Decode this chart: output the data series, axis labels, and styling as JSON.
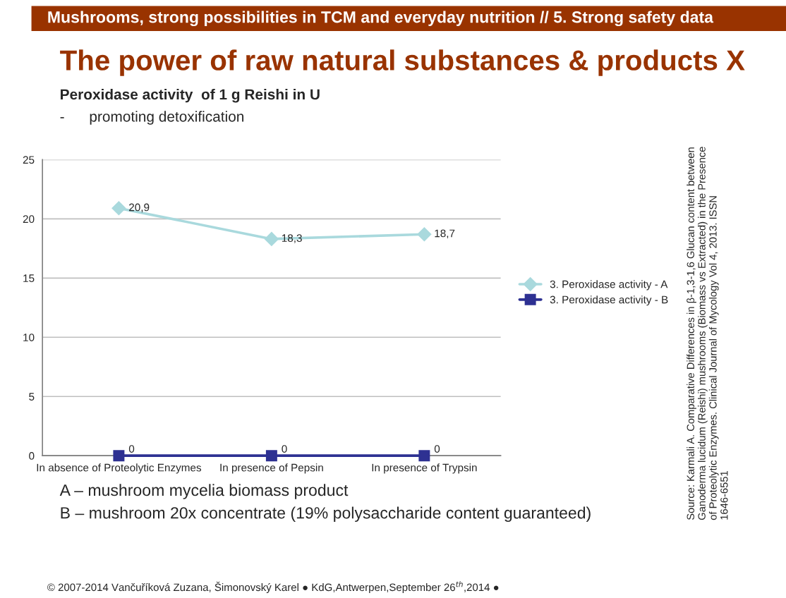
{
  "chart_data": {
    "type": "line",
    "title": "The power of raw natural substances & products X",
    "subtitle": "Peroxidase activity  of 1 g Reishi in U",
    "annotations": [
      "Mushrooms, strong possibilities in TCM and everyday nutrition // 5. Strong safety data",
      "-      promoting detoxification",
      "A – mushroom mycelia biomass product",
      "B – mushroom 20x concentrate (19% polysaccharide content guaranteed)",
      "Source: Karmali A. Comparative Differences in β-1,3-1,6 Glucan content between Ganoderma lucidum (Reishi) mushrooms (Biomass vs Extracted) in the Presence of Proteolytic Enzymes. Clinical Journal of Mycology Vol 4, 2013. ISSN 1646-6551",
      "© 2007-2014 Vančuříková Zuzana, Šimonovský Karel ● KdG,Antwerpen,September 26$^{th}$,2014 ●"
    ],
    "categories": [
      "In absence of Proteolytic Enzymes",
      "In presence of Pepsin",
      "In presence of Trypsin"
    ],
    "series": [
      {
        "name": "3. Peroxidase activity - A",
        "color": "#a9d9dd",
        "marker": "diamond",
        "values": [
          20.9,
          18.3,
          18.7
        ],
        "value_labels": [
          "20,9",
          "18,3",
          "18,7"
        ]
      },
      {
        "name": "3. Peroxidase activity - B",
        "color": "#2e3192",
        "marker": "square",
        "values": [
          0,
          0,
          0
        ],
        "value_labels": [
          "0",
          "0",
          "0"
        ]
      }
    ],
    "ylim": [
      0,
      25
    ],
    "yticks": [
      0,
      5,
      10,
      15,
      20,
      25
    ],
    "grid": "y",
    "legend": "right",
    "line_style": "solid"
  }
}
